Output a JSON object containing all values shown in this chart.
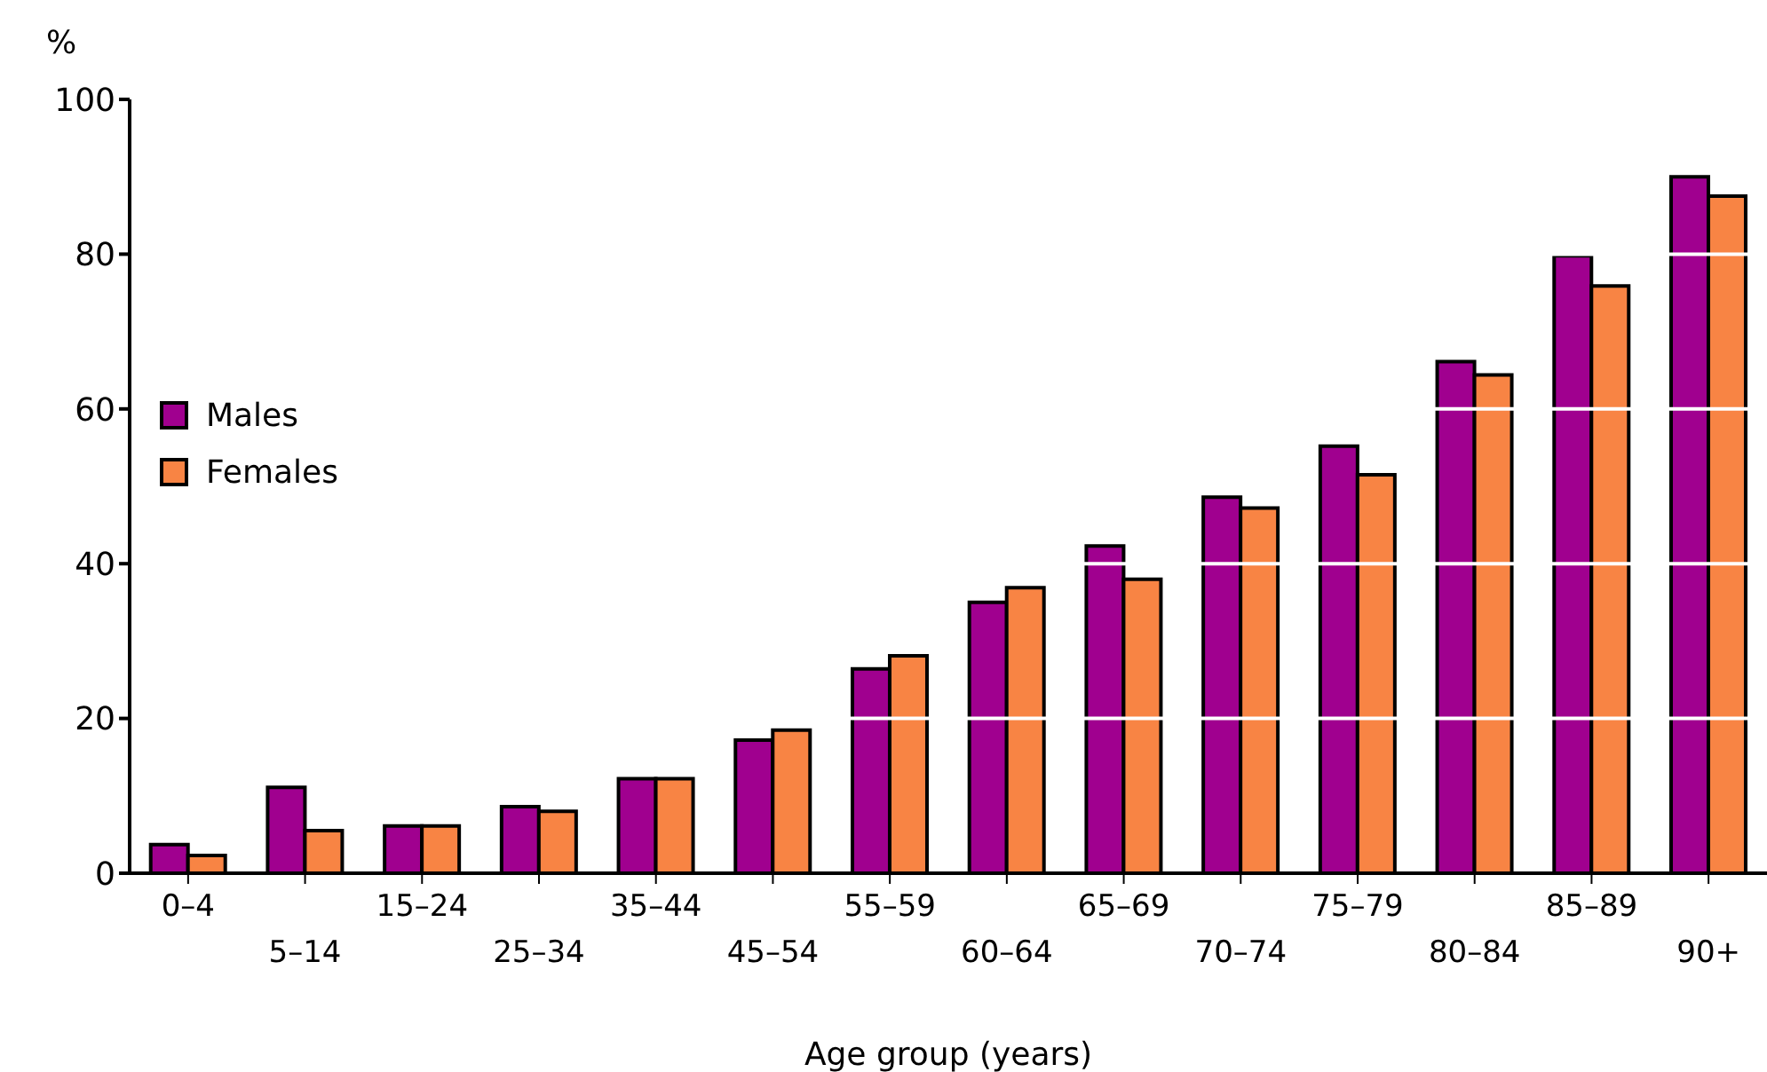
{
  "chart_data": {
    "type": "bar",
    "ylabel": "%",
    "xlabel": "Age group (years)",
    "categories": [
      "0–4",
      "5–14",
      "15–24",
      "25–34",
      "35–44",
      "45–54",
      "55–59",
      "60–64",
      "65–69",
      "70–74",
      "75–79",
      "80–84",
      "85–89",
      "90+"
    ],
    "series": [
      {
        "name": "Males",
        "color": "#a0008f",
        "values": [
          3.7,
          11.1,
          6.1,
          8.6,
          12.2,
          17.2,
          26.4,
          35.0,
          42.3,
          48.6,
          55.2,
          66.1,
          79.8,
          90.0
        ]
      },
      {
        "name": "Females",
        "color": "#f88444",
        "values": [
          2.3,
          5.5,
          6.1,
          8.0,
          12.2,
          18.5,
          28.1,
          36.9,
          38.0,
          47.2,
          51.5,
          64.4,
          75.9,
          87.5
        ]
      }
    ],
    "ylim": [
      0,
      100
    ],
    "yticks": [
      0,
      20,
      40,
      60,
      80,
      100
    ],
    "grid": "y",
    "legend": "left"
  }
}
